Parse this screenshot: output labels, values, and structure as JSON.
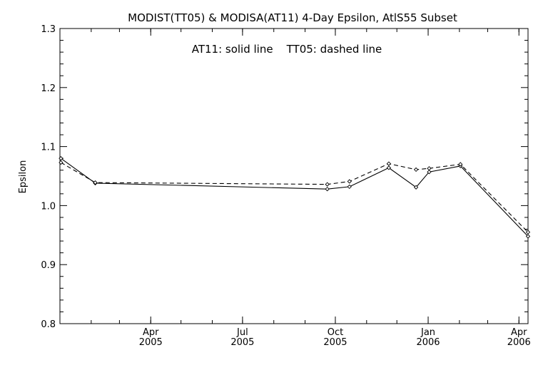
{
  "chart_data": {
    "type": "line",
    "title": "MODIST(TT05) & MODISA(AT11) 4-Day Epsilon, AtlS55 Subset",
    "annotation": "AT11: solid line    TT05: dashed line",
    "xlabel": "",
    "ylabel": "Epsilon",
    "xlim": [
      "2005-01-01",
      "2006-04-10"
    ],
    "ylim": [
      0.8,
      1.3
    ],
    "yticks": [
      0.8,
      0.9,
      1.0,
      1.1,
      1.2,
      1.3
    ],
    "ytick_labels": [
      "0.8",
      "0.9",
      "1.0",
      "1.1",
      "1.2",
      "1.3"
    ],
    "xticks": [
      {
        "date": "2005-04-01",
        "month": "Apr",
        "year": "2005"
      },
      {
        "date": "2005-07-01",
        "month": "Jul",
        "year": "2005"
      },
      {
        "date": "2005-10-01",
        "month": "Oct",
        "year": "2005"
      },
      {
        "date": "2006-01-01",
        "month": "Jan",
        "year": "2006"
      },
      {
        "date": "2006-04-01",
        "month": "Apr",
        "year": "2006"
      }
    ],
    "minor_ticks_per_month": true,
    "grid": false,
    "series": [
      {
        "style": "solid",
        "points": [
          {
            "x": "2005-01-02",
            "y": 1.08
          },
          {
            "x": "2005-02-05",
            "y": 1.038
          },
          {
            "x": "2005-09-23",
            "y": 1.028
          },
          {
            "x": "2005-10-15",
            "y": 1.032
          },
          {
            "x": "2005-11-23",
            "y": 1.064
          },
          {
            "x": "2005-12-20",
            "y": 1.031
          },
          {
            "x": "2006-01-02",
            "y": 1.057
          },
          {
            "x": "2006-02-02",
            "y": 1.067
          },
          {
            "x": "2006-04-10",
            "y": 0.948
          }
        ]
      },
      {
        "style": "dashed",
        "points": [
          {
            "x": "2005-01-02",
            "y": 1.073
          },
          {
            "x": "2005-02-05",
            "y": 1.039
          },
          {
            "x": "2005-09-23",
            "y": 1.036
          },
          {
            "x": "2005-10-15",
            "y": 1.041
          },
          {
            "x": "2005-11-23",
            "y": 1.071
          },
          {
            "x": "2005-12-20",
            "y": 1.061
          },
          {
            "x": "2006-01-02",
            "y": 1.063
          },
          {
            "x": "2006-02-02",
            "y": 1.07
          },
          {
            "x": "2006-04-10",
            "y": 0.955
          }
        ]
      }
    ]
  }
}
